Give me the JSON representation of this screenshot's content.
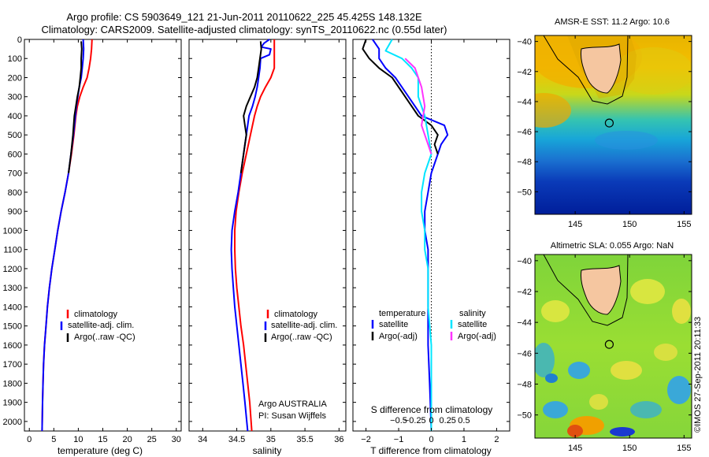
{
  "header": {
    "line1": "Argo profile: CS 5903649_121 21-Jun-2011 20110622_225 45.425S 148.132E",
    "line2": "Climatology: CARS2009. Satellite-adjusted climatology: synTS_20110622.nc (0.55d later)"
  },
  "credit": "©IMOS 27-Sep-2011 20:11:33",
  "colors": {
    "climatology": "#ff0000",
    "satellite": "#0000ff",
    "argo": "#000000",
    "salinity_satellite": "#00e5ff",
    "salinity_argo": "#ff33ff",
    "land": "#f5c6a0"
  },
  "chart_data": [
    {
      "type": "line",
      "panel": "temperature",
      "xlabel": "temperature (deg C)",
      "ylabel": "",
      "xlim": [
        -1,
        31
      ],
      "ylim": [
        2050,
        0
      ],
      "xticks": [
        0,
        5,
        10,
        15,
        20,
        25,
        30
      ],
      "yticks": [
        0,
        100,
        200,
        300,
        400,
        500,
        600,
        700,
        800,
        900,
        1000,
        1100,
        1200,
        1300,
        1400,
        1500,
        1600,
        1700,
        1800,
        1900,
        2000
      ],
      "legend": [
        "climatology",
        "satellite-adj. clim.",
        "Argo(..raw -QC)"
      ],
      "legend_position": "lower-center",
      "series": [
        {
          "name": "climatology",
          "color": "#ff0000",
          "points": [
            [
              12.8,
              0
            ],
            [
              12.7,
              50
            ],
            [
              12.5,
              100
            ],
            [
              12.2,
              150
            ],
            [
              11.8,
              200
            ],
            [
              11.0,
              250
            ],
            [
              10.3,
              300
            ],
            [
              9.8,
              350
            ],
            [
              9.5,
              400
            ],
            [
              9.1,
              500
            ],
            [
              8.6,
              600
            ],
            [
              8.0,
              700
            ],
            [
              7.3,
              800
            ],
            [
              6.5,
              900
            ],
            [
              5.8,
              1000
            ],
            [
              5.2,
              1100
            ],
            [
              4.6,
              1200
            ],
            [
              4.1,
              1300
            ],
            [
              3.7,
              1400
            ],
            [
              3.4,
              1500
            ],
            [
              3.1,
              1600
            ],
            [
              2.9,
              1700
            ],
            [
              2.8,
              1800
            ],
            [
              2.7,
              1900
            ],
            [
              2.6,
              2050
            ]
          ]
        },
        {
          "name": "satellite-adj. clim.",
          "color": "#0000ff",
          "points": [
            [
              11.0,
              0
            ],
            [
              11.1,
              50
            ],
            [
              11.0,
              100
            ],
            [
              10.8,
              150
            ],
            [
              10.6,
              200
            ],
            [
              10.2,
              250
            ],
            [
              9.9,
              300
            ],
            [
              9.6,
              350
            ],
            [
              9.4,
              400
            ],
            [
              9.0,
              500
            ],
            [
              8.5,
              600
            ],
            [
              8.0,
              700
            ],
            [
              7.3,
              800
            ],
            [
              6.5,
              900
            ],
            [
              5.8,
              1000
            ],
            [
              5.2,
              1100
            ],
            [
              4.6,
              1200
            ],
            [
              4.1,
              1300
            ],
            [
              3.7,
              1400
            ],
            [
              3.4,
              1500
            ],
            [
              3.1,
              1600
            ],
            [
              2.9,
              1700
            ],
            [
              2.8,
              1800
            ],
            [
              2.7,
              1900
            ],
            [
              2.6,
              2050
            ]
          ]
        },
        {
          "name": "Argo(..raw -QC)",
          "color": "#000000",
          "points": [
            [
              10.6,
              10
            ],
            [
              10.7,
              50
            ],
            [
              10.6,
              100
            ],
            [
              10.6,
              150
            ],
            [
              10.4,
              200
            ],
            [
              10.2,
              250
            ],
            [
              9.8,
              300
            ],
            [
              9.5,
              350
            ],
            [
              9.2,
              400
            ],
            [
              8.9,
              500
            ],
            [
              8.5,
              600
            ],
            [
              8.0,
              700
            ]
          ]
        }
      ]
    },
    {
      "type": "line",
      "panel": "salinity",
      "xlabel": "salinity",
      "xlim": [
        33.8,
        36.1
      ],
      "ylim": [
        2050,
        0
      ],
      "xticks": [
        34,
        34.5,
        35,
        35.5,
        36
      ],
      "legend": [
        "climatology",
        "satellite-adj. clim.",
        "Argo(..raw -QC)"
      ],
      "legend_position": "lower-right",
      "annotations": [
        "Argo AUSTRALIA",
        "PI: Susan Wijffels"
      ],
      "series": [
        {
          "name": "climatology",
          "color": "#ff0000",
          "points": [
            [
              35.05,
              0
            ],
            [
              35.05,
              50
            ],
            [
              35.05,
              100
            ],
            [
              35.05,
              150
            ],
            [
              35.0,
              200
            ],
            [
              34.92,
              250
            ],
            [
              34.85,
              300
            ],
            [
              34.8,
              350
            ],
            [
              34.76,
              400
            ],
            [
              34.7,
              500
            ],
            [
              34.64,
              600
            ],
            [
              34.58,
              700
            ],
            [
              34.53,
              800
            ],
            [
              34.49,
              900
            ],
            [
              34.47,
              1000
            ],
            [
              34.47,
              1100
            ],
            [
              34.48,
              1200
            ],
            [
              34.5,
              1300
            ],
            [
              34.53,
              1400
            ],
            [
              34.56,
              1500
            ],
            [
              34.6,
              1600
            ],
            [
              34.63,
              1700
            ],
            [
              34.66,
              1800
            ],
            [
              34.69,
              1900
            ],
            [
              34.72,
              2050
            ]
          ]
        },
        {
          "name": "satellite-adj. clim.",
          "color": "#0000ff",
          "points": [
            [
              34.98,
              0
            ],
            [
              34.9,
              20
            ],
            [
              34.86,
              40
            ],
            [
              35.0,
              50
            ],
            [
              34.98,
              80
            ],
            [
              34.85,
              100
            ],
            [
              34.84,
              150
            ],
            [
              34.82,
              200
            ],
            [
              34.8,
              250
            ],
            [
              34.77,
              300
            ],
            [
              34.73,
              350
            ],
            [
              34.68,
              400
            ],
            [
              34.64,
              500
            ],
            [
              34.6,
              600
            ],
            [
              34.56,
              700
            ],
            [
              34.52,
              800
            ],
            [
              34.47,
              900
            ],
            [
              34.43,
              1000
            ],
            [
              34.42,
              1100
            ],
            [
              34.43,
              1200
            ],
            [
              34.45,
              1300
            ],
            [
              34.47,
              1400
            ],
            [
              34.5,
              1500
            ],
            [
              34.53,
              1600
            ],
            [
              34.56,
              1700
            ],
            [
              34.59,
              1800
            ],
            [
              34.62,
              1900
            ],
            [
              34.66,
              2050
            ]
          ]
        },
        {
          "name": "Argo(..raw -QC)",
          "color": "#000000",
          "points": [
            [
              34.85,
              10
            ],
            [
              34.86,
              50
            ],
            [
              34.84,
              100
            ],
            [
              34.82,
              150
            ],
            [
              34.8,
              200
            ],
            [
              34.76,
              250
            ],
            [
              34.7,
              300
            ],
            [
              34.64,
              350
            ],
            [
              34.6,
              400
            ],
            [
              34.62,
              450
            ],
            [
              34.64,
              500
            ],
            [
              34.62,
              550
            ],
            [
              34.6,
              600
            ],
            [
              34.56,
              700
            ]
          ]
        }
      ]
    },
    {
      "type": "line",
      "panel": "differences",
      "xlabel": "T difference from climatology",
      "secondary_xlabel": "S difference from climatology",
      "xlim": [
        -2.4,
        2.4
      ],
      "ylim": [
        2050,
        0
      ],
      "xticks": [
        -2,
        -1,
        0,
        1,
        2
      ],
      "secondary_xticks": [
        "-0.5",
        "-0.25",
        "0",
        "0.25",
        "0.5"
      ],
      "reference_line_x": 0,
      "legend": [
        {
          "group": "temperature",
          "entries": [
            "satellite",
            "Argo(-adj)"
          ]
        },
        {
          "group": "salinity",
          "entries": [
            "satellite",
            "Argo(-adj)"
          ]
        }
      ],
      "series": [
        {
          "name": "temperature satellite",
          "color": "#0000ff",
          "points": [
            [
              -1.8,
              0
            ],
            [
              -1.6,
              50
            ],
            [
              -1.6,
              100
            ],
            [
              -1.4,
              150
            ],
            [
              -1.1,
              200
            ],
            [
              -0.7,
              300
            ],
            [
              -0.3,
              400
            ],
            [
              0.4,
              450
            ],
            [
              0.5,
              500
            ],
            [
              0.3,
              550
            ],
            [
              0.2,
              600
            ],
            [
              0.0,
              700
            ],
            [
              -0.1,
              800
            ],
            [
              -0.2,
              900
            ],
            [
              -0.2,
              1000
            ],
            [
              -0.1,
              1100
            ],
            [
              -0.1,
              1200
            ],
            [
              -0.1,
              1400
            ],
            [
              -0.1,
              1600
            ],
            [
              -0.05,
              1800
            ],
            [
              0.0,
              2050
            ]
          ]
        },
        {
          "name": "temperature Argo(-adj)",
          "color": "#000000",
          "points": [
            [
              -2.0,
              0
            ],
            [
              -2.1,
              50
            ],
            [
              -1.9,
              100
            ],
            [
              -1.6,
              150
            ],
            [
              -1.2,
              200
            ],
            [
              -0.8,
              300
            ],
            [
              -0.4,
              400
            ],
            [
              0.0,
              450
            ],
            [
              0.2,
              500
            ],
            [
              0.1,
              550
            ],
            [
              0.2,
              600
            ]
          ]
        },
        {
          "name": "salinity satellite",
          "color": "#00e5ff",
          "points": [
            [
              -1.2,
              0
            ],
            [
              -1.4,
              60
            ],
            [
              -0.9,
              100
            ],
            [
              -0.6,
              150
            ],
            [
              -0.4,
              200
            ],
            [
              -0.4,
              300
            ],
            [
              -0.2,
              400
            ],
            [
              -0.1,
              500
            ],
            [
              0.0,
              600
            ],
            [
              -0.2,
              700
            ],
            [
              -0.3,
              800
            ],
            [
              -0.3,
              900
            ],
            [
              -0.2,
              1000
            ],
            [
              -0.2,
              1100
            ],
            [
              -0.1,
              1200
            ],
            [
              -0.1,
              1400
            ],
            [
              0.0,
              1600
            ],
            [
              0.0,
              1800
            ],
            [
              0.0,
              2050
            ]
          ]
        },
        {
          "name": "salinity Argo(-adj)",
          "color": "#ff33ff",
          "points": [
            [
              -0.8,
              100
            ],
            [
              -0.5,
              150
            ],
            [
              -0.3,
              250
            ],
            [
              -0.2,
              350
            ],
            [
              -0.3,
              450
            ],
            [
              -0.1,
              550
            ],
            [
              0.0,
              600
            ]
          ]
        }
      ]
    },
    {
      "type": "heatmap",
      "panel": "sst-map",
      "title": "AMSR-E SST: 11.2 Argo: 10.6",
      "xlim": [
        141.3,
        155.7
      ],
      "ylim": [
        -51.5,
        -39.6
      ],
      "xticks": [
        145,
        150,
        155
      ],
      "yticks": [
        -40,
        -42,
        -44,
        -46,
        -48,
        -50
      ],
      "argo_position": [
        148.132,
        -45.425
      ]
    },
    {
      "type": "heatmap",
      "panel": "sla-map",
      "title": "Altimetric SLA: 0.055 Argo: NaN",
      "xlim": [
        141.3,
        155.7
      ],
      "ylim": [
        -51.5,
        -39.6
      ],
      "xticks": [
        145,
        150,
        155
      ],
      "yticks": [
        -40,
        -42,
        -44,
        -46,
        -48,
        -50
      ],
      "argo_position": [
        148.132,
        -45.425
      ]
    }
  ]
}
